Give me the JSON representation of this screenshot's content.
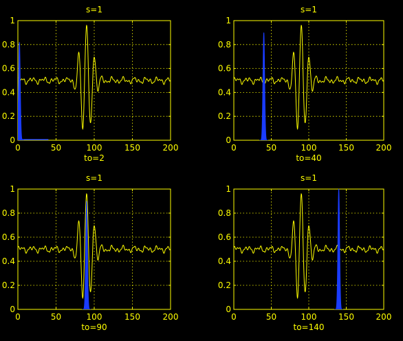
{
  "figure": {
    "background": "#000000",
    "axis_color": "#ffff00",
    "signal_color": "#ffff00",
    "window_color": "#1a3cff"
  },
  "chart_data": [
    {
      "type": "line",
      "title": "s=1",
      "xlabel": "to=2",
      "xlim": [
        0,
        200
      ],
      "ylim": [
        0,
        1
      ],
      "xticks": [
        0,
        50,
        100,
        150,
        200
      ],
      "yticks": [
        0,
        0.2,
        0.4,
        0.6,
        0.8,
        1
      ],
      "ytick_labels": [
        "0",
        "0.2",
        "0.4",
        "0.6",
        "0.8",
        "1"
      ],
      "grid": true,
      "series": [
        {
          "role": "signal",
          "color": "#ffff00",
          "center": 90,
          "baseline": 0.5,
          "peak": 0.97
        },
        {
          "role": "window",
          "color": "#1a3cff",
          "center": 2,
          "peak": 0.82,
          "baseline_end": 40
        }
      ]
    },
    {
      "type": "line",
      "title": "s=1",
      "xlabel": "to=40",
      "xlim": [
        0,
        200
      ],
      "ylim": [
        0,
        1
      ],
      "xticks": [
        0,
        50,
        100,
        150,
        200
      ],
      "yticks": [
        0,
        0.2,
        0.4,
        0.6,
        0.8,
        1
      ],
      "ytick_labels": [
        "0",
        "0.2",
        "0.4",
        "0.6",
        "0.8",
        "1"
      ],
      "grid": true,
      "series": [
        {
          "role": "signal",
          "color": "#ffff00",
          "center": 90,
          "baseline": 0.5,
          "peak": 0.97
        },
        {
          "role": "window",
          "color": "#1a3cff",
          "center": 40,
          "peak": 0.9
        }
      ]
    },
    {
      "type": "line",
      "title": "s=1",
      "xlabel": "to=90",
      "xlim": [
        0,
        200
      ],
      "ylim": [
        0,
        1
      ],
      "xticks": [
        0,
        50,
        100,
        150,
        200
      ],
      "yticks": [
        0,
        0.2,
        0.4,
        0.6,
        0.8,
        1
      ],
      "ytick_labels": [
        "0",
        "0.2",
        "0.4",
        "0.6",
        "0.8",
        "1"
      ],
      "grid": true,
      "series": [
        {
          "role": "signal",
          "color": "#ffff00",
          "center": 90,
          "baseline": 0.5,
          "peak": 0.97
        },
        {
          "role": "window",
          "color": "#1a3cff",
          "center": 90,
          "peak": 0.9
        }
      ]
    },
    {
      "type": "line",
      "title": "s=1",
      "xlabel": "to=140",
      "xlim": [
        0,
        200
      ],
      "ylim": [
        0,
        1
      ],
      "xticks": [
        0,
        50,
        100,
        150,
        200
      ],
      "yticks": [
        0,
        0.2,
        0.4,
        0.6,
        0.8,
        1
      ],
      "ytick_labels": [
        "0",
        "0.2",
        "0.4",
        "0.6",
        "0.8",
        "1"
      ],
      "grid": true,
      "series": [
        {
          "role": "signal",
          "color": "#ffff00",
          "center": 90,
          "baseline": 0.5,
          "peak": 0.97
        },
        {
          "role": "window",
          "color": "#1a3cff",
          "center": 140,
          "peak": 1.0
        }
      ]
    }
  ]
}
